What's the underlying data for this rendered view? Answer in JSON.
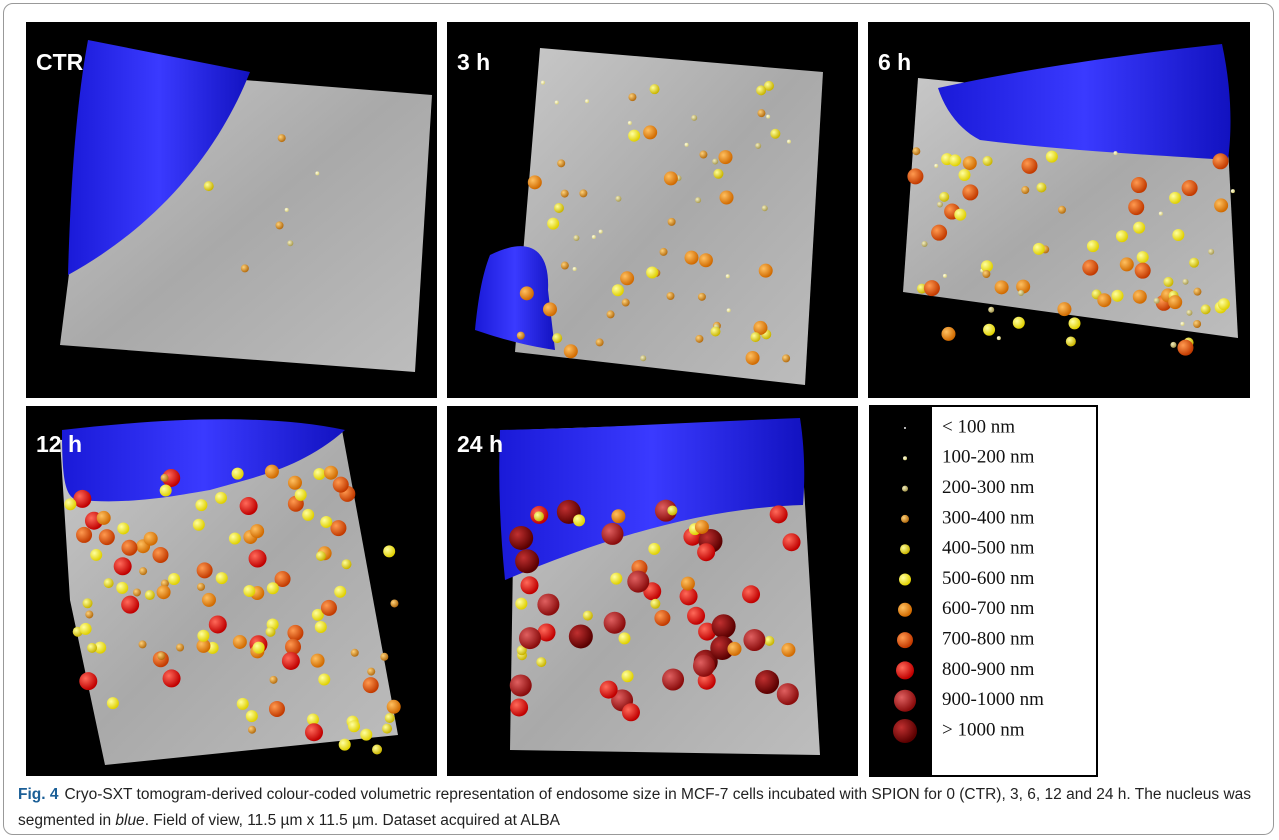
{
  "panels": [
    {
      "label": "CTR"
    },
    {
      "label": "3 h"
    },
    {
      "label": "6 h"
    },
    {
      "label": "12 h"
    },
    {
      "label": "24 h"
    }
  ],
  "legend": {
    "items": [
      "< 100 nm",
      "100-200 nm",
      "200-300 nm",
      "300-400 nm",
      "400-500 nm",
      "500-600 nm",
      "600-700 nm",
      "700-800 nm",
      "800-900 nm",
      "900-1000 nm",
      "> 1000 nm"
    ]
  },
  "caption": {
    "label": "Fig. 4",
    "text_before": "Cryo-SXT tomogram-derived colour-coded volumetric representation of endosome size in MCF-7 cells incubated with SPION for 0 (CTR), 3, 6, 12 and 24 h. The nucleus was segmented in ",
    "emphasis": "blue",
    "text_after": ". Field of view, 11.5 µm x 11.5 µm. Dataset acquired at ALBA"
  }
}
